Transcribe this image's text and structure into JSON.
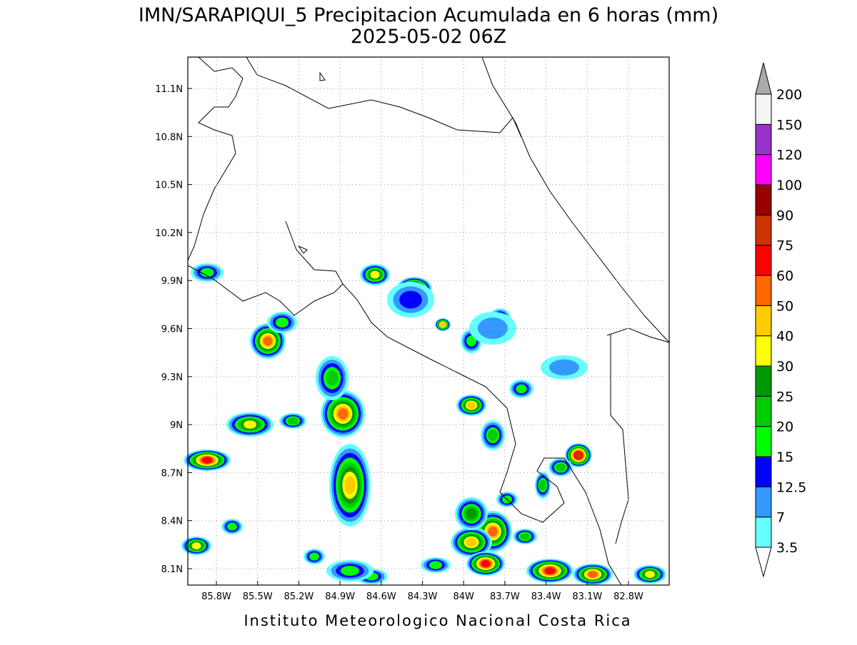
{
  "title": "IMN/SARAPIQUI_5 Precipitacion Acumulada en 6 horas (mm)",
  "subtitle": "2025-05-02 06Z",
  "lat_labels": [
    "11.1N",
    "10.8N",
    "10.5N",
    "10.2N",
    "9.9N",
    "9.6N",
    "9.3N",
    "9N",
    "8.7N",
    "8.4N",
    "8.1N"
  ],
  "lon_labels": [
    "85.8W",
    "85.5W",
    "85.2W",
    "84.9W",
    "84.6W",
    "84.3W",
    "84W",
    "83.7W",
    "83.4W",
    "83.1W",
    "82.8W"
  ],
  "colorbar": {
    "levels": [
      3.5,
      7,
      12.5,
      15,
      20,
      25,
      30,
      40,
      50,
      60,
      75,
      90,
      100,
      120,
      150,
      200
    ],
    "colors": [
      "#66ffff",
      "#3399ff",
      "#0000ff",
      "#00ff00",
      "#00cc00",
      "#009900",
      "#ffff00",
      "#ffcc00",
      "#ff6600",
      "#ff0000",
      "#cc3300",
      "#990000",
      "#ff00ff",
      "#9933cc",
      "#f5f5f5"
    ],
    "below_color": "#ffffff",
    "above_color": "#aaaaaa"
  },
  "footer": "Instituto Meteorologico Nacional Costa Rica"
}
